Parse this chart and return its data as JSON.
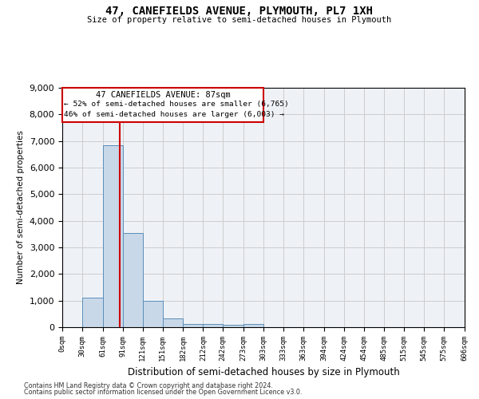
{
  "title": "47, CANEFIELDS AVENUE, PLYMOUTH, PL7 1XH",
  "subtitle": "Size of property relative to semi-detached houses in Plymouth",
  "xlabel": "Distribution of semi-detached houses by size in Plymouth",
  "ylabel": "Number of semi-detached properties",
  "property_size": 87,
  "property_label": "47 CANEFIELDS AVENUE: 87sqm",
  "smaller_pct": 52,
  "smaller_count": "6,765",
  "larger_pct": 46,
  "larger_count": "6,003",
  "bin_edges": [
    0,
    30,
    61,
    91,
    121,
    151,
    182,
    212,
    242,
    273,
    303,
    333,
    363,
    394,
    424,
    454,
    485,
    515,
    545,
    575,
    606
  ],
  "bin_counts": [
    0,
    1100,
    6850,
    3550,
    1000,
    320,
    130,
    120,
    100,
    110,
    0,
    0,
    0,
    0,
    0,
    0,
    0,
    0,
    0,
    0
  ],
  "bar_color": "#c8d8e8",
  "bar_edge_color": "#5b8db8",
  "vline_color": "#cc0000",
  "grid_color": "#cccccc",
  "bg_color": "#eef2f7",
  "annotation_box_color": "#cc0000",
  "ylim": [
    0,
    9000
  ],
  "footnote1": "Contains HM Land Registry data © Crown copyright and database right 2024.",
  "footnote2": "Contains public sector information licensed under the Open Government Licence v3.0."
}
